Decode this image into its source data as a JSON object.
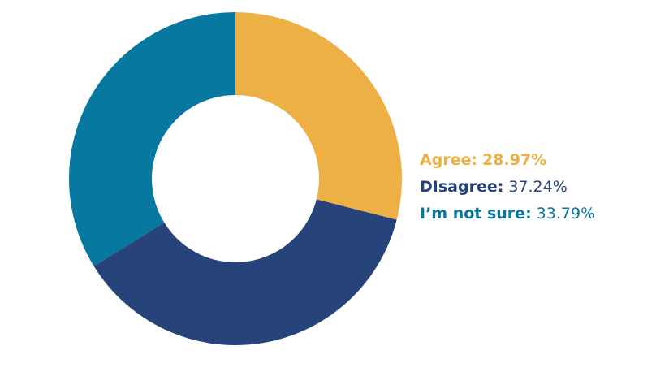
{
  "chart_data": {
    "type": "pie",
    "categories": [
      "Agree:",
      "DIsagree:",
      "I’m not sure:"
    ],
    "values": [
      28.97,
      37.24,
      33.79
    ],
    "value_labels": [
      "28.97%",
      "37.24%",
      "33.79%"
    ],
    "colors": [
      "#edb045",
      "#27447a",
      "#0779a1"
    ]
  }
}
